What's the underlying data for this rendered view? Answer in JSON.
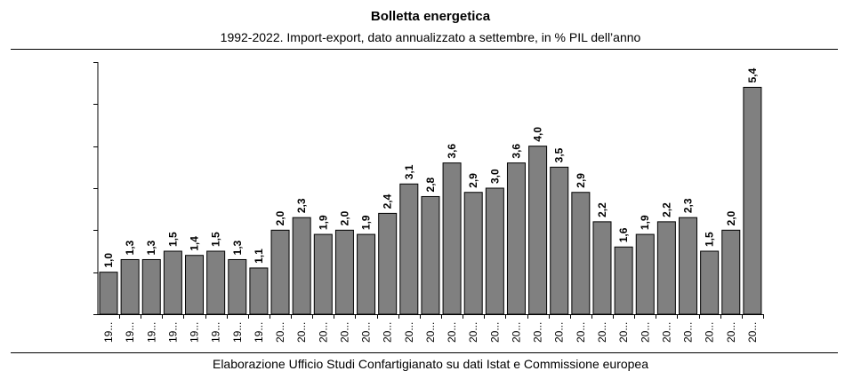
{
  "chart_data": {
    "type": "bar",
    "title": "Bolletta energetica",
    "subtitle": "1992-2022. Import-export, dato annualizzato a settembre, in % PIL dell’anno",
    "source": "Elaborazione Ufficio Studi Confartigianato su dati Istat e Commissione europea",
    "categories": [
      "19...",
      "19...",
      "19...",
      "19...",
      "19...",
      "19...",
      "19...",
      "19...",
      "20...",
      "20...",
      "20...",
      "20...",
      "20...",
      "20...",
      "20...",
      "20...",
      "20...",
      "20...",
      "20...",
      "20...",
      "20...",
      "20...",
      "20...",
      "20...",
      "20...",
      "20...",
      "20...",
      "20...",
      "20...",
      "20...",
      "20..."
    ],
    "values": [
      1.0,
      1.3,
      1.3,
      1.5,
      1.4,
      1.5,
      1.3,
      1.1,
      2.0,
      2.3,
      1.9,
      2.0,
      1.9,
      2.4,
      3.1,
      2.8,
      3.6,
      2.9,
      3.0,
      3.6,
      4.0,
      3.5,
      2.9,
      2.2,
      1.6,
      1.9,
      2.2,
      2.3,
      1.5,
      2.0,
      5.4
    ],
    "value_labels": [
      "1,0",
      "1,3",
      "1,3",
      "1,5",
      "1,4",
      "1,5",
      "1,3",
      "1,1",
      "2,0",
      "2,3",
      "1,9",
      "2,0",
      "1,9",
      "2,4",
      "3,1",
      "2,8",
      "3,6",
      "2,9",
      "3,0",
      "3,6",
      "4,0",
      "3,5",
      "2,9",
      "2,2",
      "1,6",
      "1,9",
      "2,2",
      "2,3",
      "1,5",
      "2,0",
      "5,4"
    ],
    "ylim": [
      0,
      6
    ],
    "yticks": [
      0,
      1,
      2,
      3,
      4,
      5,
      6
    ],
    "bar_color": "#808080",
    "grid": false,
    "legend": "none"
  }
}
